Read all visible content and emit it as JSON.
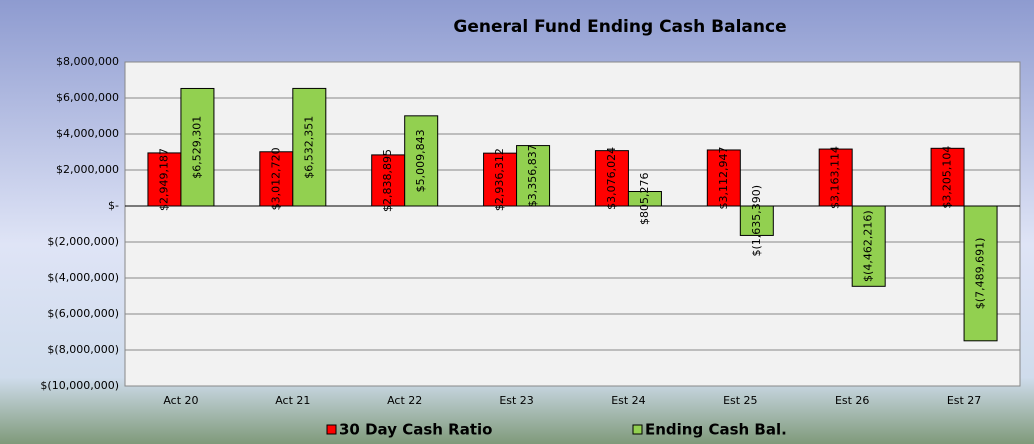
{
  "chart_data": {
    "type": "bar",
    "title": "General Fund Ending Cash Balance",
    "categories": [
      "Act 20",
      "Act 21",
      "Act 22",
      "Est 23",
      "Est 24",
      "Est 25",
      "Est 26",
      "Est 27"
    ],
    "series": [
      {
        "name": "30 Day Cash Ratio",
        "color": "#ff0000",
        "values": [
          2949187,
          3012720,
          2838895,
          2936312,
          3076024,
          3112947,
          3163114,
          3205104
        ],
        "value_labels": [
          "$2,949,187",
          "$3,012,720",
          "$2,838,895",
          "$2,936,312",
          "$3,076,024",
          "$3,112,947",
          "$3,163,114",
          "$3,205,104"
        ]
      },
      {
        "name": "Ending Cash Bal.",
        "color": "#92d050",
        "values": [
          6529301,
          6532351,
          5009843,
          3356837,
          805276,
          -1635390,
          -4462216,
          -7489691
        ],
        "value_labels": [
          "$6,529,301",
          "$6,532,351",
          "$5,009,843",
          "$3,356,837",
          "$805,276",
          "$(1,635,390)",
          "$(4,462,216)",
          "$(7,489,691)"
        ]
      }
    ],
    "ylim": [
      -10000000,
      8000000
    ],
    "yticks": [
      {
        "value": 8000000,
        "label": "$8,000,000"
      },
      {
        "value": 6000000,
        "label": "$6,000,000"
      },
      {
        "value": 4000000,
        "label": "$4,000,000"
      },
      {
        "value": 2000000,
        "label": "$2,000,000"
      },
      {
        "value": 0,
        "label": "$-"
      },
      {
        "value": -2000000,
        "label": "$(2,000,000)"
      },
      {
        "value": -4000000,
        "label": "$(4,000,000)"
      },
      {
        "value": -6000000,
        "label": "$(6,000,000)"
      },
      {
        "value": -8000000,
        "label": "$(8,000,000)"
      },
      {
        "value": -10000000,
        "label": "$(10,000,000)"
      }
    ],
    "grid": true,
    "legend": "bottom"
  }
}
